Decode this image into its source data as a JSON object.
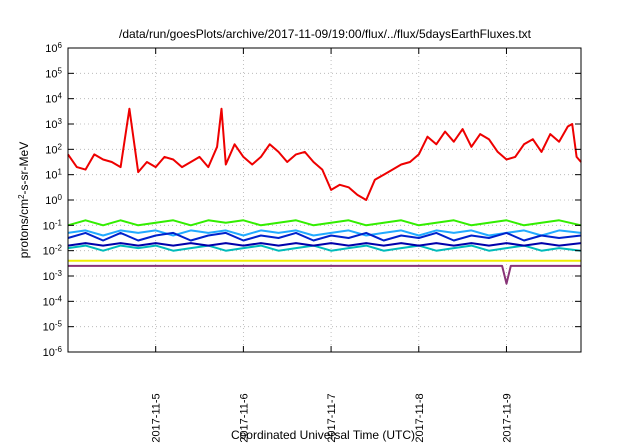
{
  "chart_data": {
    "type": "line",
    "title": "/data/run/goesPlots/archive/2017-11-09/19:00/flux/../flux/5daysEarthFluxes.txt",
    "xlabel": "Coordinated Universal Time (UTC)",
    "ylabel": {
      "before": "protons/cm",
      "sup": "2",
      "after": "-s-sr-MeV"
    },
    "scale": {
      "y": "log"
    },
    "grid": true,
    "xlim": [
      4.0,
      9.85
    ],
    "ylim_exp": [
      -6,
      6
    ],
    "x_ticks": [
      {
        "value": 5,
        "label": "2017-11-5"
      },
      {
        "value": 6,
        "label": "2017-11-6"
      },
      {
        "value": 7,
        "label": "2017-11-7"
      },
      {
        "value": 8,
        "label": "2017-11-8"
      },
      {
        "value": 9,
        "label": "2017-11-9"
      }
    ],
    "y_ticks": [
      {
        "exp": 6,
        "base": "10",
        "power": "6"
      },
      {
        "exp": 5,
        "base": "10",
        "power": "5"
      },
      {
        "exp": 4,
        "base": "10",
        "power": "4"
      },
      {
        "exp": 3,
        "base": "10",
        "power": "3"
      },
      {
        "exp": 2,
        "base": "10",
        "power": "2"
      },
      {
        "exp": 1,
        "base": "10",
        "power": "1"
      },
      {
        "exp": 0,
        "base": "10",
        "power": "0"
      },
      {
        "exp": -1,
        "base": "10",
        "power": "-1"
      },
      {
        "exp": -2,
        "base": "10",
        "power": "-2"
      },
      {
        "exp": -3,
        "base": "10",
        "power": "-3"
      },
      {
        "exp": -4,
        "base": "10",
        "power": "-4"
      },
      {
        "exp": -5,
        "base": "10",
        "power": "-5"
      },
      {
        "exp": -6,
        "base": "10",
        "power": "-6"
      }
    ],
    "series": [
      {
        "color": "#ee0000",
        "width": 2,
        "points": [
          [
            4.0,
            1.8
          ],
          [
            4.1,
            1.3
          ],
          [
            4.2,
            1.2
          ],
          [
            4.3,
            1.8
          ],
          [
            4.4,
            1.6
          ],
          [
            4.5,
            1.5
          ],
          [
            4.6,
            1.3
          ],
          [
            4.7,
            3.6
          ],
          [
            4.8,
            1.1
          ],
          [
            4.9,
            1.5
          ],
          [
            5.0,
            1.3
          ],
          [
            5.1,
            1.7
          ],
          [
            5.2,
            1.6
          ],
          [
            5.3,
            1.3
          ],
          [
            5.4,
            1.5
          ],
          [
            5.5,
            1.7
          ],
          [
            5.6,
            1.3
          ],
          [
            5.7,
            2.1
          ],
          [
            5.75,
            3.6
          ],
          [
            5.8,
            1.4
          ],
          [
            5.9,
            2.2
          ],
          [
            6.0,
            1.7
          ],
          [
            6.1,
            1.4
          ],
          [
            6.2,
            1.7
          ],
          [
            6.3,
            2.2
          ],
          [
            6.4,
            1.9
          ],
          [
            6.5,
            1.5
          ],
          [
            6.6,
            1.8
          ],
          [
            6.7,
            1.9
          ],
          [
            6.8,
            1.5
          ],
          [
            6.9,
            1.2
          ],
          [
            7.0,
            0.4
          ],
          [
            7.1,
            0.6
          ],
          [
            7.2,
            0.5
          ],
          [
            7.3,
            0.2
          ],
          [
            7.4,
            0.0
          ],
          [
            7.5,
            0.8
          ],
          [
            7.6,
            1.0
          ],
          [
            7.7,
            1.2
          ],
          [
            7.8,
            1.4
          ],
          [
            7.9,
            1.5
          ],
          [
            8.0,
            1.8
          ],
          [
            8.1,
            2.5
          ],
          [
            8.2,
            2.2
          ],
          [
            8.3,
            2.7
          ],
          [
            8.4,
            2.3
          ],
          [
            8.5,
            2.8
          ],
          [
            8.6,
            2.1
          ],
          [
            8.7,
            2.6
          ],
          [
            8.8,
            2.4
          ],
          [
            8.9,
            1.9
          ],
          [
            9.0,
            1.6
          ],
          [
            9.1,
            1.7
          ],
          [
            9.2,
            2.2
          ],
          [
            9.3,
            2.4
          ],
          [
            9.4,
            1.9
          ],
          [
            9.5,
            2.6
          ],
          [
            9.6,
            2.3
          ],
          [
            9.7,
            2.9
          ],
          [
            9.75,
            3.0
          ],
          [
            9.8,
            1.7
          ],
          [
            9.85,
            1.5
          ]
        ]
      },
      {
        "color": "#33ee00",
        "width": 2,
        "points": [
          [
            4.0,
            -1.0
          ],
          [
            4.2,
            -0.8
          ],
          [
            4.4,
            -1.0
          ],
          [
            4.6,
            -0.8
          ],
          [
            4.8,
            -1.0
          ],
          [
            5.0,
            -0.9
          ],
          [
            5.2,
            -0.8
          ],
          [
            5.4,
            -1.0
          ],
          [
            5.6,
            -0.8
          ],
          [
            5.8,
            -0.9
          ],
          [
            6.0,
            -0.8
          ],
          [
            6.2,
            -1.0
          ],
          [
            6.4,
            -0.9
          ],
          [
            6.6,
            -0.8
          ],
          [
            6.8,
            -1.0
          ],
          [
            7.0,
            -0.9
          ],
          [
            7.2,
            -0.8
          ],
          [
            7.4,
            -1.0
          ],
          [
            7.6,
            -0.9
          ],
          [
            7.8,
            -0.8
          ],
          [
            8.0,
            -1.0
          ],
          [
            8.2,
            -0.9
          ],
          [
            8.4,
            -0.8
          ],
          [
            8.6,
            -1.0
          ],
          [
            8.8,
            -0.9
          ],
          [
            9.0,
            -0.8
          ],
          [
            9.2,
            -1.0
          ],
          [
            9.4,
            -0.9
          ],
          [
            9.6,
            -0.8
          ],
          [
            9.85,
            -1.0
          ]
        ]
      },
      {
        "color": "#22aaff",
        "width": 2,
        "points": [
          [
            4.0,
            -1.3
          ],
          [
            4.2,
            -1.2
          ],
          [
            4.4,
            -1.4
          ],
          [
            4.6,
            -1.2
          ],
          [
            4.8,
            -1.3
          ],
          [
            5.0,
            -1.2
          ],
          [
            5.2,
            -1.4
          ],
          [
            5.4,
            -1.2
          ],
          [
            5.6,
            -1.3
          ],
          [
            5.8,
            -1.2
          ],
          [
            6.0,
            -1.4
          ],
          [
            6.2,
            -1.2
          ],
          [
            6.4,
            -1.3
          ],
          [
            6.6,
            -1.2
          ],
          [
            6.8,
            -1.4
          ],
          [
            7.0,
            -1.3
          ],
          [
            7.2,
            -1.2
          ],
          [
            7.4,
            -1.4
          ],
          [
            7.6,
            -1.3
          ],
          [
            7.8,
            -1.2
          ],
          [
            8.0,
            -1.4
          ],
          [
            8.2,
            -1.2
          ],
          [
            8.4,
            -1.3
          ],
          [
            8.6,
            -1.2
          ],
          [
            8.8,
            -1.4
          ],
          [
            9.0,
            -1.3
          ],
          [
            9.2,
            -1.2
          ],
          [
            9.4,
            -1.4
          ],
          [
            9.6,
            -1.2
          ],
          [
            9.85,
            -1.3
          ]
        ]
      },
      {
        "color": "#0022cc",
        "width": 2,
        "points": [
          [
            4.0,
            -1.5
          ],
          [
            4.2,
            -1.3
          ],
          [
            4.4,
            -1.6
          ],
          [
            4.6,
            -1.3
          ],
          [
            4.8,
            -1.6
          ],
          [
            5.0,
            -1.4
          ],
          [
            5.2,
            -1.3
          ],
          [
            5.4,
            -1.6
          ],
          [
            5.6,
            -1.4
          ],
          [
            5.8,
            -1.3
          ],
          [
            6.0,
            -1.6
          ],
          [
            6.2,
            -1.4
          ],
          [
            6.4,
            -1.5
          ],
          [
            6.6,
            -1.3
          ],
          [
            6.8,
            -1.6
          ],
          [
            7.0,
            -1.4
          ],
          [
            7.2,
            -1.5
          ],
          [
            7.4,
            -1.3
          ],
          [
            7.6,
            -1.6
          ],
          [
            7.8,
            -1.4
          ],
          [
            8.0,
            -1.5
          ],
          [
            8.2,
            -1.3
          ],
          [
            8.4,
            -1.6
          ],
          [
            8.6,
            -1.4
          ],
          [
            8.8,
            -1.5
          ],
          [
            9.0,
            -1.3
          ],
          [
            9.2,
            -1.6
          ],
          [
            9.4,
            -1.4
          ],
          [
            9.6,
            -1.5
          ],
          [
            9.85,
            -1.4
          ]
        ]
      },
      {
        "color": "#00bbbb",
        "width": 2,
        "points": [
          [
            4.0,
            -1.9
          ],
          [
            4.2,
            -1.8
          ],
          [
            4.4,
            -2.0
          ],
          [
            4.6,
            -1.8
          ],
          [
            4.8,
            -1.9
          ],
          [
            5.0,
            -1.8
          ],
          [
            5.2,
            -2.0
          ],
          [
            5.4,
            -1.9
          ],
          [
            5.6,
            -1.8
          ],
          [
            5.8,
            -2.0
          ],
          [
            6.0,
            -1.9
          ],
          [
            6.2,
            -1.8
          ],
          [
            6.4,
            -2.0
          ],
          [
            6.6,
            -1.9
          ],
          [
            6.8,
            -1.8
          ],
          [
            7.0,
            -2.0
          ],
          [
            7.2,
            -1.9
          ],
          [
            7.4,
            -1.8
          ],
          [
            7.6,
            -2.0
          ],
          [
            7.8,
            -1.9
          ],
          [
            8.0,
            -1.8
          ],
          [
            8.2,
            -2.0
          ],
          [
            8.4,
            -1.9
          ],
          [
            8.6,
            -1.8
          ],
          [
            8.8,
            -2.0
          ],
          [
            9.0,
            -1.9
          ],
          [
            9.2,
            -1.8
          ],
          [
            9.4,
            -2.0
          ],
          [
            9.6,
            -1.9
          ],
          [
            9.85,
            -2.0
          ]
        ]
      },
      {
        "color": "#0000aa",
        "width": 2,
        "points": [
          [
            4.0,
            -1.8
          ],
          [
            4.2,
            -1.7
          ],
          [
            4.4,
            -1.8
          ],
          [
            4.6,
            -1.7
          ],
          [
            4.8,
            -1.8
          ],
          [
            5.0,
            -1.7
          ],
          [
            5.2,
            -1.8
          ],
          [
            5.4,
            -1.7
          ],
          [
            5.6,
            -1.8
          ],
          [
            5.8,
            -1.7
          ],
          [
            6.0,
            -1.8
          ],
          [
            6.2,
            -1.7
          ],
          [
            6.4,
            -1.8
          ],
          [
            6.6,
            -1.7
          ],
          [
            6.8,
            -1.8
          ],
          [
            7.0,
            -1.7
          ],
          [
            7.2,
            -1.8
          ],
          [
            7.4,
            -1.7
          ],
          [
            7.6,
            -1.8
          ],
          [
            7.8,
            -1.7
          ],
          [
            8.0,
            -1.8
          ],
          [
            8.2,
            -1.7
          ],
          [
            8.4,
            -1.8
          ],
          [
            8.6,
            -1.7
          ],
          [
            8.8,
            -1.8
          ],
          [
            9.0,
            -1.7
          ],
          [
            9.2,
            -1.8
          ],
          [
            9.4,
            -1.7
          ],
          [
            9.6,
            -1.8
          ],
          [
            9.85,
            -1.7
          ]
        ]
      },
      {
        "color": "#eeee00",
        "width": 2,
        "points": [
          [
            4.0,
            -2.4
          ],
          [
            4.4,
            -2.4
          ],
          [
            4.8,
            -2.4
          ],
          [
            5.2,
            -2.4
          ],
          [
            5.6,
            -2.4
          ],
          [
            6.0,
            -2.4
          ],
          [
            6.4,
            -2.4
          ],
          [
            6.8,
            -2.4
          ],
          [
            7.2,
            -2.4
          ],
          [
            7.6,
            -2.4
          ],
          [
            8.0,
            -2.4
          ],
          [
            8.4,
            -2.4
          ],
          [
            8.8,
            -2.4
          ],
          [
            9.2,
            -2.4
          ],
          [
            9.6,
            -2.4
          ],
          [
            9.85,
            -2.4
          ]
        ]
      },
      {
        "color": "#883377",
        "width": 2,
        "points": [
          [
            4.0,
            -2.6
          ],
          [
            4.5,
            -2.6
          ],
          [
            5.0,
            -2.6
          ],
          [
            5.5,
            -2.6
          ],
          [
            6.0,
            -2.6
          ],
          [
            6.5,
            -2.6
          ],
          [
            7.0,
            -2.6
          ],
          [
            7.5,
            -2.6
          ],
          [
            8.0,
            -2.6
          ],
          [
            8.5,
            -2.6
          ],
          [
            8.95,
            -2.6
          ],
          [
            9.0,
            -3.3
          ],
          [
            9.05,
            -2.6
          ],
          [
            9.5,
            -2.6
          ],
          [
            9.85,
            -2.6
          ]
        ]
      }
    ]
  }
}
